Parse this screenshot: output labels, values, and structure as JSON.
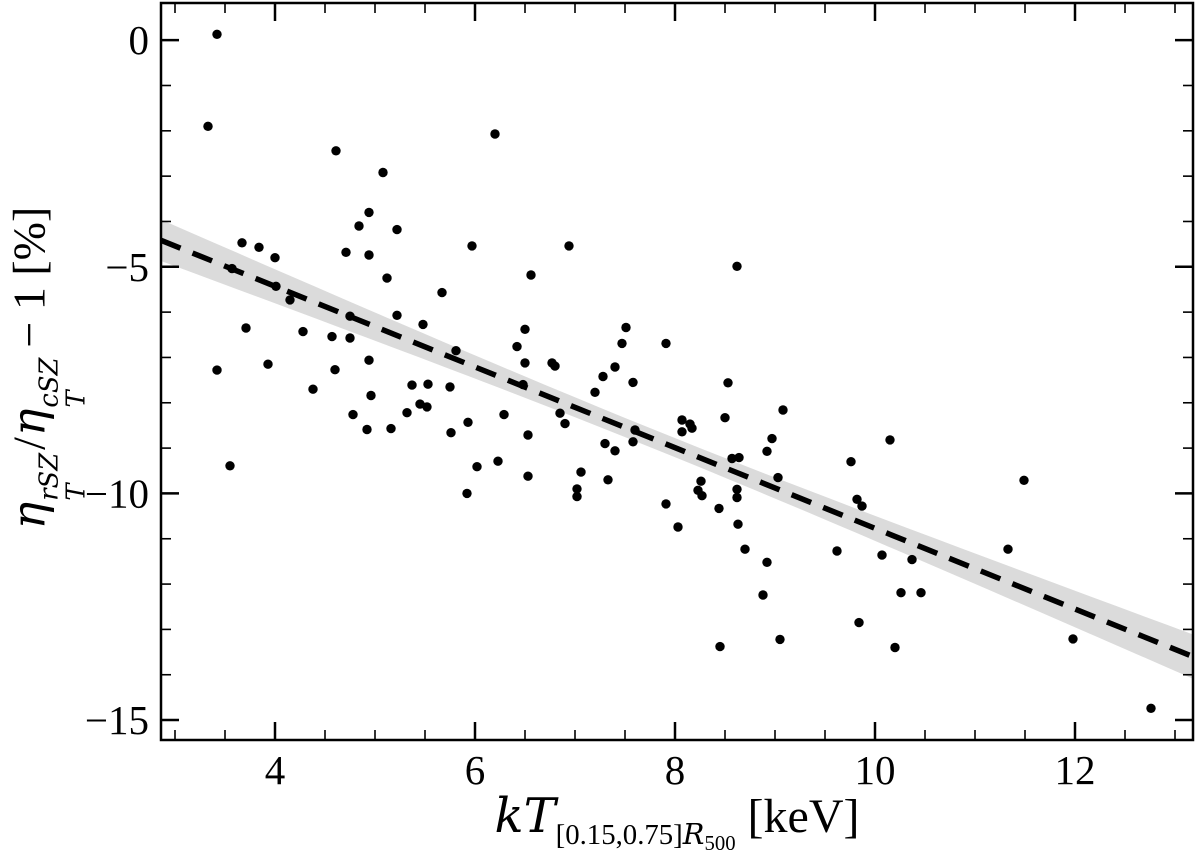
{
  "figure": {
    "background": "#ffffff",
    "dot_color": "#000000",
    "line_color": "#000000",
    "band_color": "#dbdbdb",
    "axis_color": "#000000"
  },
  "axes": {
    "x_label": {
      "var": "kT",
      "sub_bracket": "[0.15,0.75]",
      "sub_R": "R",
      "sub_500": "500",
      "unit": " [keV]"
    },
    "y_label": {
      "eta1": "η",
      "num_sup": "rSZ",
      "num_sub": "T",
      "slash": "/",
      "eta2": "η",
      "den_sup": "cSZ",
      "den_sub": "T",
      "tail": "− 1 [%]"
    }
  },
  "chart_data": {
    "type": "scatter",
    "xlabel": "kT_[0.15,0.75]R500 [keV]",
    "ylabel": "eta_T^rSZ / eta_T^cSZ − 1 [%]",
    "xlim": [
      2.86,
      13.18
    ],
    "ylim": [
      -15.44,
      0.82
    ],
    "x_ticks": [
      4,
      6,
      8,
      10,
      12
    ],
    "x_tick_labels": [
      "4",
      "6",
      "8",
      "10",
      "12"
    ],
    "x_minor_ticks": [
      3,
      3.5,
      4.5,
      5,
      5.5,
      6.5,
      7,
      7.5,
      8.5,
      9,
      9.5,
      10.5,
      11,
      11.5,
      12.5,
      13
    ],
    "y_ticks": [
      0,
      -5,
      -10,
      -15
    ],
    "y_tick_labels": [
      "0",
      "−5",
      "−10",
      "−15"
    ],
    "y_minor_ticks": [
      -1,
      -2,
      -3,
      -4,
      -6,
      -7,
      -8,
      -9,
      -11,
      -12,
      -13,
      -14
    ],
    "grid": false,
    "legend": false,
    "fit_line": {
      "style": "dashed",
      "slope": -0.89,
      "intercept": -1.87,
      "x_range": [
        2.86,
        13.18
      ]
    },
    "band": {
      "center_x": 7.8,
      "min_half_width": 0.21,
      "growth": 0.082
    },
    "points": [
      [
        3.42,
        0.13
      ],
      [
        3.33,
        -1.9
      ],
      [
        4.61,
        -2.44
      ],
      [
        5.08,
        -2.92
      ],
      [
        4.94,
        -3.8
      ],
      [
        4.84,
        -4.1
      ],
      [
        5.22,
        -4.18
      ],
      [
        3.67,
        -4.47
      ],
      [
        3.84,
        -4.57
      ],
      [
        4.0,
        -4.8
      ],
      [
        4.71,
        -4.68
      ],
      [
        4.94,
        -4.74
      ],
      [
        3.57,
        -5.04
      ],
      [
        5.12,
        -5.25
      ],
      [
        4.01,
        -5.43
      ],
      [
        4.15,
        -5.73
      ],
      [
        4.75,
        -6.09
      ],
      [
        5.22,
        -6.07
      ],
      [
        3.71,
        -6.35
      ],
      [
        4.28,
        -6.43
      ],
      [
        4.57,
        -6.54
      ],
      [
        4.75,
        -6.57
      ],
      [
        4.94,
        -7.06
      ],
      [
        3.93,
        -7.15
      ],
      [
        3.42,
        -7.28
      ],
      [
        4.6,
        -7.27
      ],
      [
        4.38,
        -7.7
      ],
      [
        4.96,
        -7.84
      ],
      [
        6.2,
        -2.07
      ],
      [
        5.97,
        -4.54
      ],
      [
        6.94,
        -4.54
      ],
      [
        6.56,
        -5.18
      ],
      [
        5.67,
        -5.57
      ],
      [
        5.48,
        -6.27
      ],
      [
        6.5,
        -6.38
      ],
      [
        7.51,
        -6.34
      ],
      [
        6.42,
        -6.76
      ],
      [
        5.81,
        -6.85
      ],
      [
        7.47,
        -6.69
      ],
      [
        6.5,
        -7.12
      ],
      [
        6.77,
        -7.12
      ],
      [
        6.8,
        -7.19
      ],
      [
        7.4,
        -7.21
      ],
      [
        7.28,
        -7.42
      ],
      [
        7.58,
        -7.55
      ],
      [
        7.91,
        -6.69
      ],
      [
        6.48,
        -7.6
      ],
      [
        7.2,
        -7.77
      ],
      [
        8.62,
        -4.99
      ],
      [
        8.53,
        -7.56
      ],
      [
        5.37,
        -7.61
      ],
      [
        5.53,
        -7.59
      ],
      [
        5.75,
        -7.65
      ],
      [
        5.45,
        -8.03
      ],
      [
        5.52,
        -8.09
      ],
      [
        5.32,
        -8.22
      ],
      [
        3.55,
        -9.39
      ],
      [
        4.78,
        -8.26
      ],
      [
        4.92,
        -8.59
      ],
      [
        5.16,
        -8.57
      ],
      [
        5.93,
        -8.43
      ],
      [
        5.76,
        -8.66
      ],
      [
        6.29,
        -8.26
      ],
      [
        6.02,
        -9.41
      ],
      [
        6.23,
        -9.29
      ],
      [
        5.92,
        -10.0
      ],
      [
        6.53,
        -8.71
      ],
      [
        6.53,
        -9.62
      ],
      [
        6.85,
        -8.23
      ],
      [
        6.9,
        -8.46
      ],
      [
        7.06,
        -9.53
      ],
      [
        7.02,
        -9.9
      ],
      [
        7.02,
        -10.07
      ],
      [
        7.3,
        -8.9
      ],
      [
        7.4,
        -9.06
      ],
      [
        7.33,
        -9.7
      ],
      [
        7.6,
        -8.6
      ],
      [
        7.58,
        -8.86
      ],
      [
        7.91,
        -10.23
      ],
      [
        9.08,
        -8.16
      ],
      [
        8.5,
        -8.33
      ],
      [
        8.07,
        -8.38
      ],
      [
        8.15,
        -8.47
      ],
      [
        8.17,
        -8.56
      ],
      [
        8.07,
        -8.64
      ],
      [
        8.97,
        -8.79
      ],
      [
        8.92,
        -9.07
      ],
      [
        10.15,
        -8.82
      ],
      [
        9.76,
        -9.3
      ],
      [
        8.57,
        -9.23
      ],
      [
        8.64,
        -9.21
      ],
      [
        9.03,
        -9.65
      ],
      [
        8.26,
        -9.73
      ],
      [
        8.23,
        -9.93
      ],
      [
        8.27,
        -10.05
      ],
      [
        8.62,
        -9.91
      ],
      [
        8.62,
        -10.09
      ],
      [
        8.44,
        -10.33
      ],
      [
        9.82,
        -10.13
      ],
      [
        9.87,
        -10.28
      ],
      [
        8.03,
        -10.74
      ],
      [
        8.63,
        -10.68
      ],
      [
        8.7,
        -11.23
      ],
      [
        9.62,
        -11.27
      ],
      [
        10.07,
        -11.36
      ],
      [
        10.37,
        -11.46
      ],
      [
        8.92,
        -11.52
      ],
      [
        8.88,
        -12.24
      ],
      [
        10.26,
        -12.19
      ],
      [
        10.46,
        -12.19
      ],
      [
        9.84,
        -12.85
      ],
      [
        9.05,
        -13.22
      ],
      [
        8.45,
        -13.38
      ],
      [
        10.2,
        -13.4
      ],
      [
        11.49,
        -9.71
      ],
      [
        11.33,
        -11.23
      ],
      [
        11.98,
        -13.21
      ],
      [
        12.76,
        -14.74
      ]
    ]
  }
}
